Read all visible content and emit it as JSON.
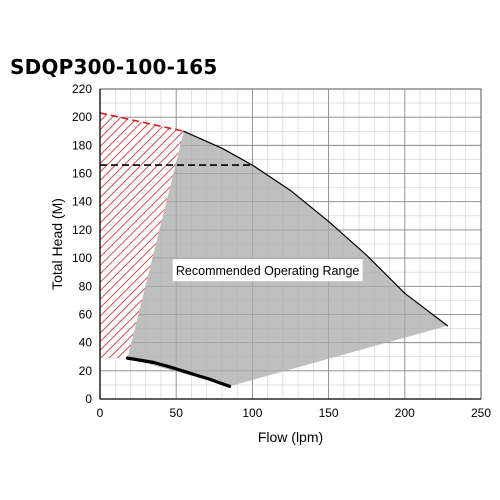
{
  "chart_data": {
    "type": "line",
    "title": "SDQP300-100-165",
    "xlabel": "Flow (lpm)",
    "ylabel": "Total Head (M)",
    "xlim": [
      0,
      250
    ],
    "ylim": [
      0,
      220
    ],
    "x_ticks": [
      0,
      50,
      100,
      150,
      200,
      250
    ],
    "y_ticks": [
      0,
      20,
      40,
      60,
      80,
      100,
      120,
      140,
      160,
      180,
      200,
      220
    ],
    "grid": true,
    "minor_grid_step": {
      "x": 10,
      "y": 10
    },
    "annotation": "Recommended Operating Range",
    "series": [
      {
        "style": "solid-thin",
        "color": "#000000",
        "x": [
          55,
          80,
          100,
          125,
          150,
          175,
          200,
          228
        ],
        "y": [
          190,
          178,
          166,
          148,
          126,
          102,
          75,
          52
        ]
      },
      {
        "style": "dashed",
        "color": "#000000",
        "x": [
          0,
          55
        ],
        "y": [
          203,
          190
        ]
      },
      {
        "style": "dashed",
        "color": "#000000",
        "x": [
          0,
          100
        ],
        "y": [
          166,
          166
        ]
      },
      {
        "style": "solid-thick",
        "color": "#000000",
        "x": [
          18,
          35,
          45,
          60,
          72,
          85
        ],
        "y": [
          29,
          26,
          23,
          18,
          14,
          9
        ]
      }
    ],
    "regions": [
      {
        "fill": "gray",
        "color": "#aaaaaa",
        "x": [
          55,
          80,
          100,
          125,
          150,
          175,
          200,
          228,
          85,
          18
        ],
        "y": [
          190,
          178,
          166,
          148,
          126,
          102,
          75,
          52,
          9,
          29
        ]
      },
      {
        "fill": "red-hatch",
        "color": "#cc2222",
        "x": [
          0,
          55,
          18,
          0
        ],
        "y": [
          203,
          190,
          29,
          29
        ]
      }
    ]
  }
}
